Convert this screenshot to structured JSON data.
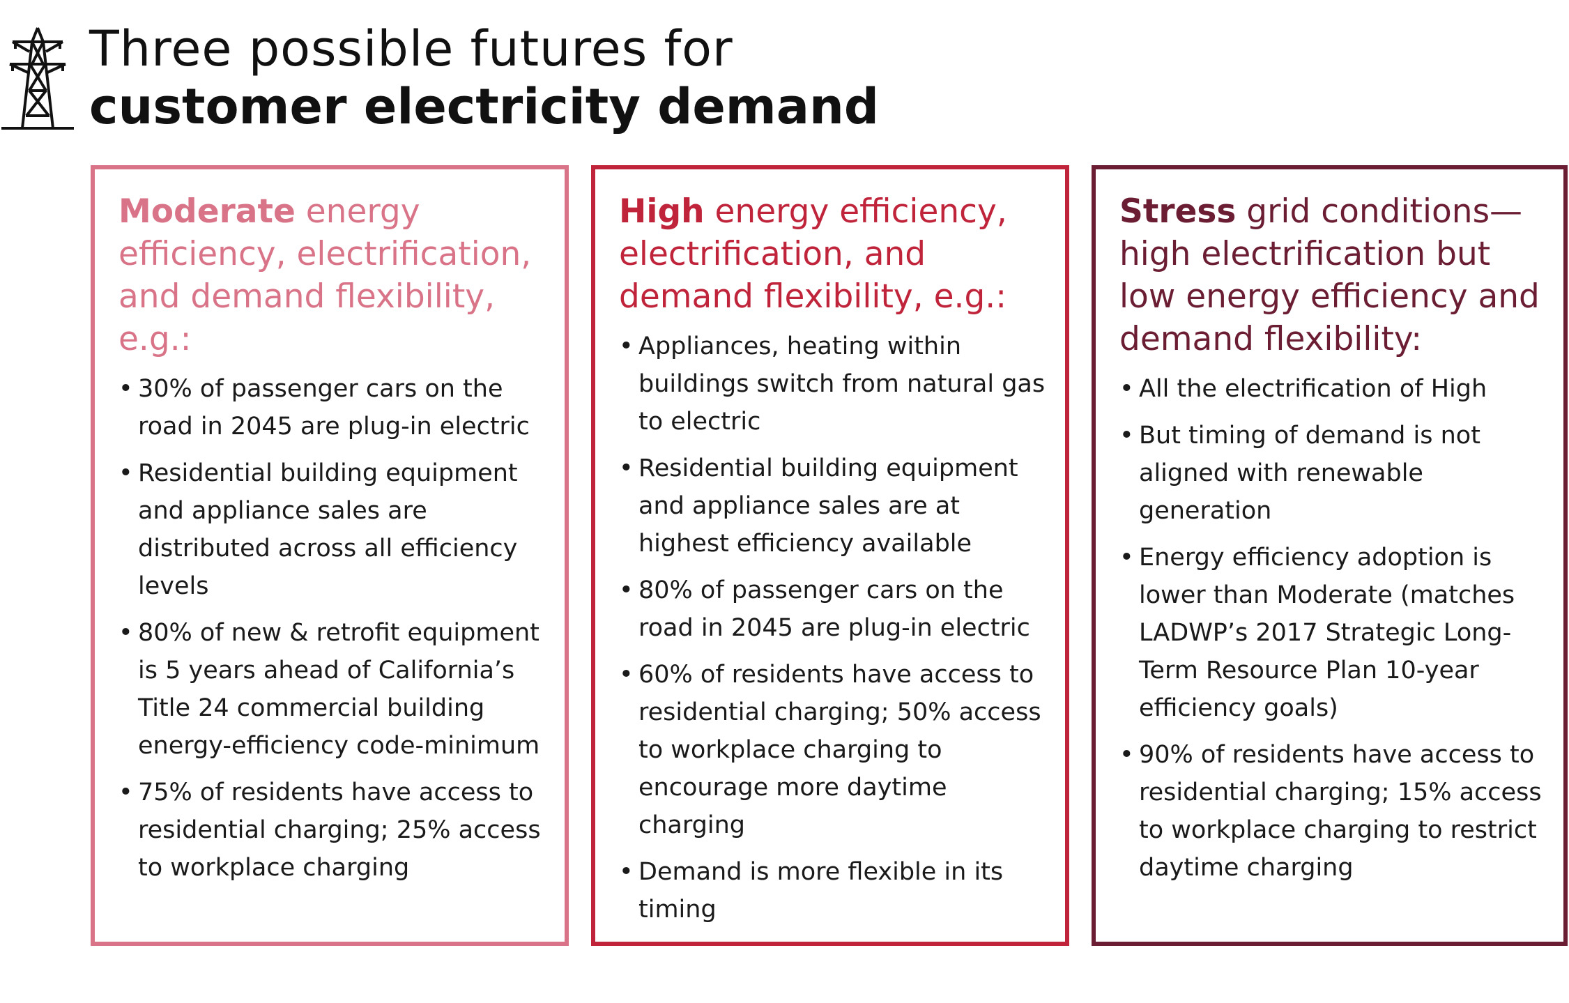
{
  "header": {
    "title_line1": "Three possible futures for",
    "title_line2": "customer electricity demand",
    "icon": "transmission-tower-icon"
  },
  "colors": {
    "moderate": "#d97488",
    "high": "#c0243b",
    "stress": "#6b1e33",
    "text": "#1a1a1a"
  },
  "panels": [
    {
      "keyword": "Moderate",
      "heading_rest": " energy efficiency, electrification, and demand flexibility, e.g.:",
      "bullets": [
        "30% of passenger cars on the road in 2045 are plug-in electric",
        "Residential building equipment and appliance sales are distributed across all efficiency levels",
        "80% of new & retrofit equipment is 5 years ahead of California’s Title 24 commercial building energy-efficiency code-minimum",
        "75% of residents have access to residential charging; 25% access to workplace charging"
      ]
    },
    {
      "keyword": "High",
      "heading_rest": " energy efficiency, electrification, and demand flexibility, e.g.:",
      "bullets": [
        "Appliances, heating within buildings switch from natural gas to electric",
        "Residential building equipment and appliance sales are at highest efficiency available",
        "80% of passenger cars on the road in 2045 are plug-in electric",
        "60% of residents have access to residential charging; 50% access to workplace charging to encourage more daytime charging",
        "Demand is more flexible in its timing"
      ]
    },
    {
      "keyword": "Stress",
      "heading_rest": " grid conditions—high electrification but low energy efficiency and demand flexibility:",
      "bullets": [
        "All the electrification of High",
        "But timing of demand is not aligned with renewable generation",
        "Energy efficiency adoption is lower than Moderate (matches LADWP’s 2017 Strategic Long-Term Resource Plan 10-year efficiency goals)",
        "90% of residents have access to residential charging; 15% access to workplace charging to restrict daytime charging"
      ]
    }
  ]
}
